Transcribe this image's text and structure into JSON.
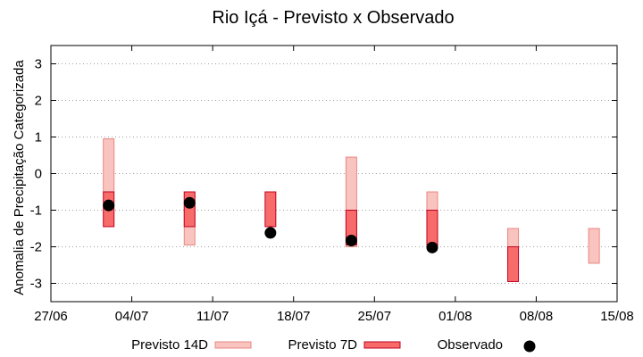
{
  "chart_data": {
    "type": "range-bar",
    "title": "Rio Içá - Previsto x Observado",
    "ylabel": "Anomalia de Precipitação Categorizada",
    "xlabel": "",
    "ylim": [
      -3.5,
      3.5
    ],
    "yticks": [
      3,
      2,
      1,
      0,
      -1,
      -2,
      -3
    ],
    "ytick_labels": [
      "3",
      "2",
      "1",
      "0",
      "-1",
      "-2",
      "-3"
    ],
    "x_range_days": [
      0,
      49
    ],
    "xtick_days": [
      0,
      7,
      14,
      21,
      28,
      35,
      42,
      49
    ],
    "xtick_labels": [
      "27/06",
      "04/07",
      "11/07",
      "18/07",
      "25/07",
      "01/08",
      "08/08",
      "15/08"
    ],
    "grid": true,
    "series": [
      {
        "name": "Previsto 14D",
        "kind": "range",
        "color_fill": "#f9c4c0",
        "color_stroke": "#e8877f",
        "points": [
          {
            "day": 5,
            "low": -0.5,
            "high": 0.95
          },
          {
            "day": 12,
            "low": -1.95,
            "high": -0.5
          },
          {
            "day": 26,
            "low": -2.0,
            "high": 0.45
          },
          {
            "day": 33,
            "low": -2.0,
            "high": -0.5
          },
          {
            "day": 40,
            "low": -2.45,
            "high": -1.5
          },
          {
            "day": 47,
            "low": -2.45,
            "high": -1.5
          }
        ]
      },
      {
        "name": "Previsto 7D",
        "kind": "range",
        "color_fill": "#f76b6b",
        "color_stroke": "#c0001f",
        "points": [
          {
            "day": 5,
            "low": -1.45,
            "high": -0.5
          },
          {
            "day": 12,
            "low": -1.45,
            "high": -0.5
          },
          {
            "day": 19,
            "low": -1.45,
            "high": -0.5
          },
          {
            "day": 26,
            "low": -1.95,
            "high": -1.0
          },
          {
            "day": 33,
            "low": -1.95,
            "high": -1.0
          },
          {
            "day": 40,
            "low": -2.95,
            "high": -2.0
          }
        ]
      },
      {
        "name": "Observado",
        "kind": "point",
        "color_fill": "#000000",
        "points": [
          {
            "day": 5,
            "value": -0.87
          },
          {
            "day": 12,
            "value": -0.8
          },
          {
            "day": 19,
            "value": -1.62
          },
          {
            "day": 26,
            "value": -1.83
          },
          {
            "day": 33,
            "value": -2.02
          }
        ]
      }
    ],
    "legend": {
      "placement": "bottom",
      "entries": [
        "Previsto 14D",
        "Previsto 7D",
        "Observado"
      ]
    }
  }
}
